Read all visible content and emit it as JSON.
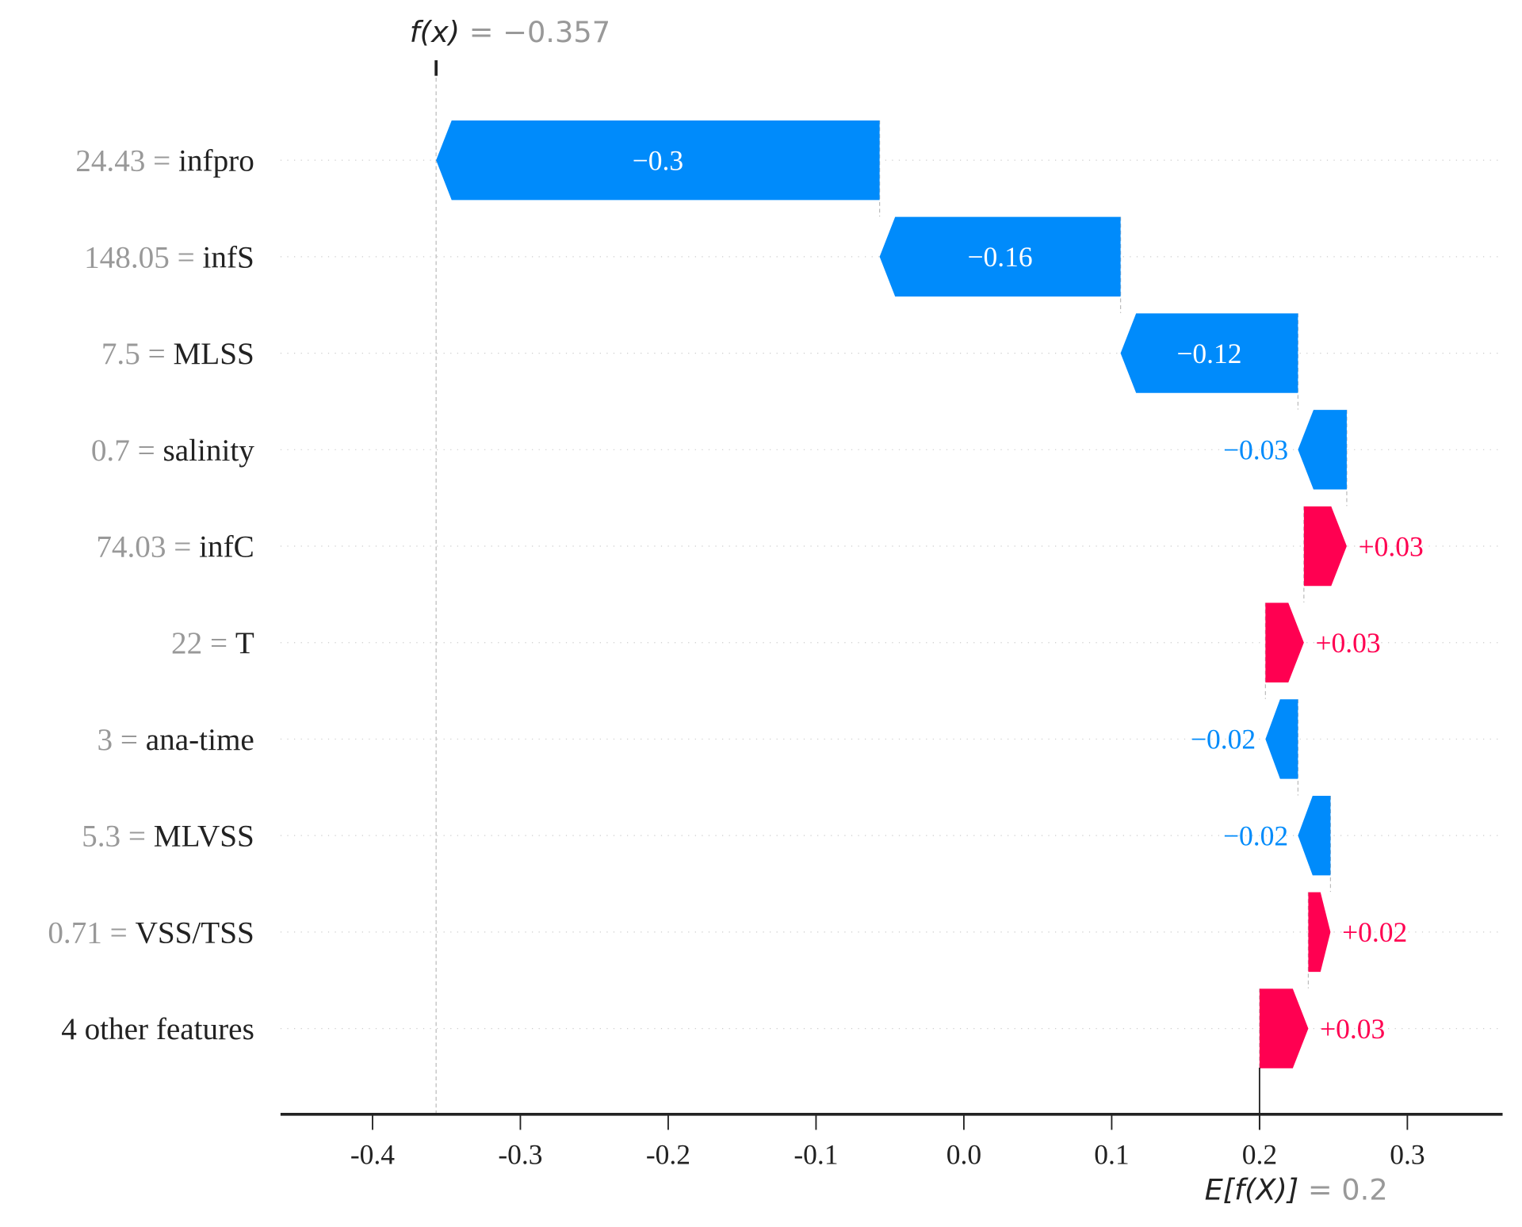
{
  "chart_data": {
    "type": "waterfall",
    "title": "",
    "xlabel": "",
    "ylabel": "",
    "xlim": [
      -0.46,
      0.36
    ],
    "x_ticks": [
      "-0.4",
      "-0.3",
      "-0.2",
      "-0.1",
      "0.0",
      "0.1",
      "0.2",
      "0.3"
    ],
    "x_tick_values": [
      -0.4,
      -0.3,
      -0.2,
      -0.1,
      0.0,
      0.1,
      0.2,
      0.3
    ],
    "fx_label": "f(x)",
    "fx_value": "−0.357",
    "fx": -0.357,
    "efx_label": "E[f(X)]",
    "efx_value": "0.2",
    "base_value": 0.2,
    "features": [
      {
        "value": "24.43",
        "name": "infpro",
        "shap": -0.3,
        "label": "−0.3"
      },
      {
        "value": "148.05",
        "name": "infS",
        "shap": -0.163,
        "label": "−0.16"
      },
      {
        "value": "7.5",
        "name": "MLSS",
        "shap": -0.12,
        "label": "−0.12"
      },
      {
        "value": "0.7",
        "name": "salinity",
        "shap": -0.033,
        "label": "−0.03"
      },
      {
        "value": "74.03",
        "name": "infC",
        "shap": 0.029,
        "label": "+0.03"
      },
      {
        "value": "22",
        "name": "T",
        "shap": 0.026,
        "label": "+0.03"
      },
      {
        "value": "3",
        "name": "ana-time",
        "shap": -0.022,
        "label": "−0.02"
      },
      {
        "value": "5.3",
        "name": "MLVSS",
        "shap": -0.022,
        "label": "−0.02"
      },
      {
        "value": "0.71",
        "name": "VSS/TSS",
        "shap": 0.015,
        "label": "+0.02"
      },
      {
        "value": "",
        "name": "4 other features",
        "shap": 0.033,
        "label": "+0.03"
      }
    ],
    "colors": {
      "positive": "#ff0051",
      "negative": "#008bfb",
      "value_text": "#999999",
      "text": "#222222"
    }
  }
}
